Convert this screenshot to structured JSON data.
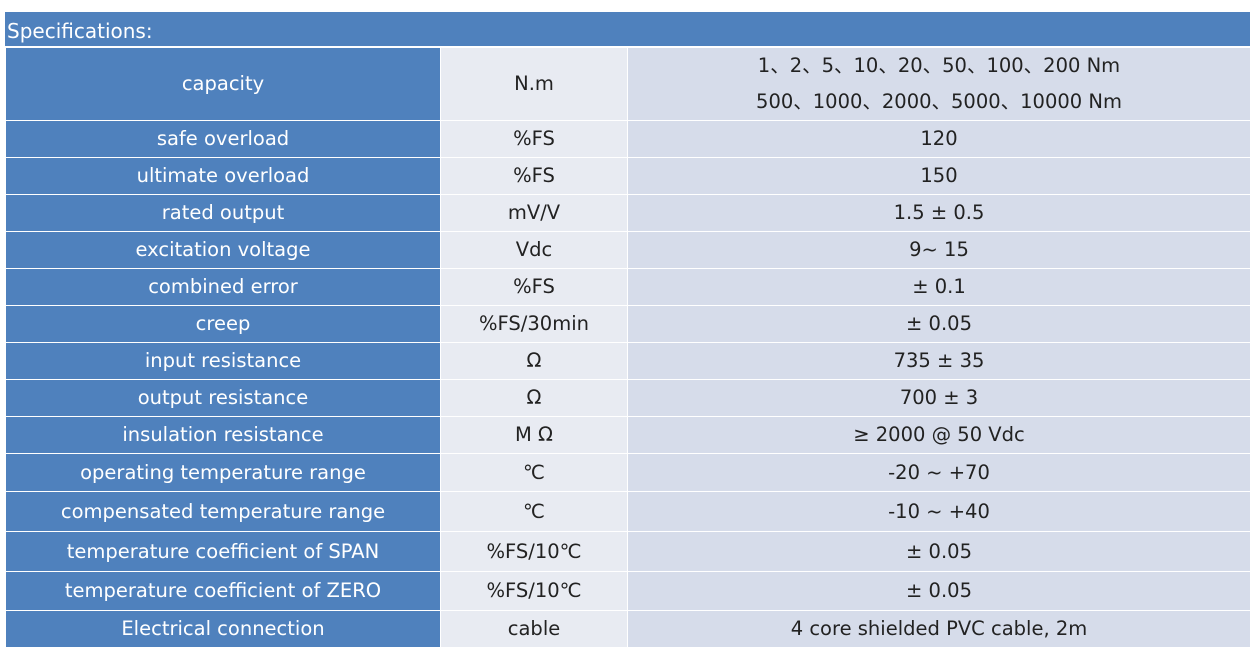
{
  "header": {
    "title": "Specifications:"
  },
  "table": {
    "rows": [
      {
        "label": "capacity",
        "unit": "N.m",
        "value": [
          "1、2、5、10、20、50、100、200 Nm",
          "500、1000、2000、5000、10000 Nm"
        ]
      },
      {
        "label": "safe overload",
        "unit": "%FS",
        "value": [
          "120"
        ]
      },
      {
        "label": "ultimate overload",
        "unit": "%FS",
        "value": [
          "150"
        ]
      },
      {
        "label": "rated output",
        "unit": "mV/V",
        "value": [
          "1.5 ± 0.5"
        ]
      },
      {
        "label": "excitation voltage",
        "unit": "Vdc",
        "value": [
          "9~ 15"
        ]
      },
      {
        "label": "combined error",
        "unit": "%FS",
        "value": [
          "± 0.1"
        ]
      },
      {
        "label": "creep",
        "unit": "%FS/30min",
        "value": [
          "± 0.05"
        ]
      },
      {
        "label": "input resistance",
        "unit": "Ω",
        "value": [
          "735 ± 35"
        ]
      },
      {
        "label": "output resistance",
        "unit": "Ω",
        "value": [
          "700 ± 3"
        ]
      },
      {
        "label": "insulation resistance",
        "unit": "M Ω",
        "value": [
          "≥ 2000 @ 50 Vdc"
        ]
      },
      {
        "label": "operating temperature range",
        "unit": "℃",
        "value": [
          "-20 ~ +70"
        ]
      },
      {
        "label": "compensated temperature range",
        "unit": "℃",
        "value": [
          "-10 ~ +40"
        ]
      },
      {
        "label": "temperature coefficient of SPAN",
        "unit": "%FS/10℃",
        "value": [
          "± 0.05"
        ]
      },
      {
        "label": "temperature coefficient of ZERO",
        "unit": "%FS/10℃",
        "value": [
          "± 0.05"
        ]
      },
      {
        "label": "Electrical connection",
        "unit": "cable",
        "value": [
          "4 core shielded PVC cable, 2m"
        ]
      }
    ]
  }
}
